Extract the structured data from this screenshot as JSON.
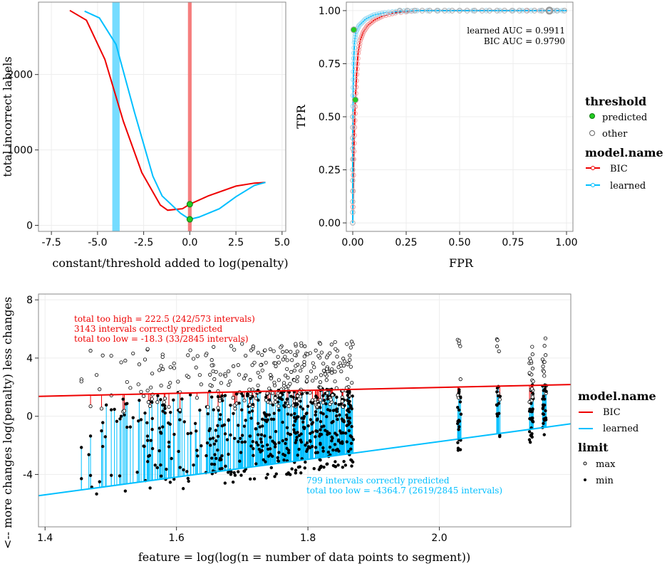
{
  "colors": {
    "BIC": "#ee0000",
    "learned": "#00bfff",
    "predicted": "#22cc22",
    "other": "#888888"
  },
  "chart_data": [
    {
      "type": "line",
      "xlabel": "constant/threshold added to log(penalty)",
      "ylabel": "total incorrect labels",
      "xlim": [
        -8.2,
        5.2
      ],
      "ylim": [
        -80,
        2960
      ],
      "xticks": [
        "-7.5",
        "-5.0",
        "-2.5",
        "0.0",
        "2.5",
        "5.0"
      ],
      "yticks": [
        "0",
        "1000",
        "2000"
      ],
      "grid": true,
      "vbands": [
        {
          "series": "learned",
          "x": -4.0,
          "width": 0.4
        },
        {
          "series": "BIC",
          "x": 0.0,
          "width": 0.2
        }
      ],
      "series": [
        {
          "name": "BIC",
          "x": [
            -6.5,
            -5.6,
            -4.6,
            -3.6,
            -2.6,
            -1.6,
            -1.2,
            -0.4,
            0.0,
            1.0,
            2.5,
            3.5,
            4.1
          ],
          "y": [
            2850,
            2720,
            2200,
            1380,
            700,
            270,
            200,
            220,
            280,
            390,
            520,
            560,
            570
          ]
        },
        {
          "name": "learned",
          "x": [
            -5.7,
            -4.9,
            -4.0,
            -3.0,
            -2.0,
            -1.5,
            -0.5,
            0.0,
            0.5,
            1.6,
            2.5,
            3.5,
            4.1
          ],
          "y": [
            2840,
            2750,
            2400,
            1500,
            650,
            390,
            160,
            80,
            110,
            220,
            380,
            530,
            570
          ]
        }
      ],
      "points": [
        {
          "series": "BIC",
          "x": 0.0,
          "y": 280,
          "threshold": "predicted"
        },
        {
          "series": "learned",
          "x": 0.0,
          "y": 80,
          "threshold": "predicted"
        }
      ]
    },
    {
      "type": "line",
      "xlabel": "FPR",
      "ylabel": "TPR",
      "xlim": [
        -0.03,
        1.03
      ],
      "ylim": [
        -0.04,
        1.04
      ],
      "xticks": [
        "0.00",
        "0.25",
        "0.50",
        "0.75",
        "1.00"
      ],
      "yticks": [
        "0.00",
        "0.25",
        "0.50",
        "0.75",
        "1.00"
      ],
      "grid": true,
      "annotations": [
        {
          "series": "learned",
          "text": "learned AUC = 0.9911"
        },
        {
          "series": "BIC",
          "text": "BIC AUC = 0.9790"
        }
      ],
      "series": [
        {
          "name": "BIC",
          "x": [
            0.0,
            0.004,
            0.008,
            0.012,
            0.018,
            0.025,
            0.035,
            0.05,
            0.07,
            0.1,
            0.14,
            0.2,
            0.3,
            0.5,
            0.75,
            1.0
          ],
          "y": [
            0.0,
            0.3,
            0.45,
            0.58,
            0.7,
            0.8,
            0.86,
            0.9,
            0.93,
            0.955,
            0.975,
            0.99,
            1.0,
            1.0,
            1.0,
            1.0
          ]
        },
        {
          "name": "learned",
          "x": [
            0.0,
            0.0,
            0.0,
            0.002,
            0.004,
            0.008,
            0.015,
            0.03,
            0.06,
            0.1,
            0.15,
            0.22,
            0.3,
            0.5,
            0.75,
            0.92,
            1.0
          ],
          "y": [
            0.0,
            0.2,
            0.4,
            0.6,
            0.75,
            0.85,
            0.9,
            0.93,
            0.96,
            0.98,
            0.99,
            0.997,
            1.0,
            1.0,
            1.0,
            1.0,
            1.0
          ]
        }
      ],
      "points": [
        {
          "series": "BIC",
          "x": 0.012,
          "y": 0.58,
          "threshold": "predicted"
        },
        {
          "series": "learned",
          "x": 0.005,
          "y": 0.91,
          "threshold": "predicted"
        }
      ]
    },
    {
      "type": "scatter",
      "xlabel": "feature = log(log(n = number of data points to segment))",
      "ylabel": "<-- more changes log(penalty) less changes",
      "xlim": [
        1.39,
        2.2
      ],
      "ylim": [
        -7.6,
        8.4
      ],
      "xticks": [
        "1.4",
        "1.6",
        "1.8",
        "2.0"
      ],
      "yticks": [
        "-4",
        "0",
        "4",
        "8"
      ],
      "grid": true,
      "series": [
        {
          "name": "BIC",
          "slope": 1.0,
          "intercept": -0.02,
          "x": [
            1.39,
            2.2
          ],
          "y": [
            1.37,
            2.18
          ]
        },
        {
          "name": "learned",
          "slope": 6.1,
          "intercept": -13.94,
          "x": [
            1.39,
            2.2
          ],
          "y": [
            -5.46,
            -0.52
          ]
        }
      ],
      "annotations": [
        {
          "series": "BIC",
          "lines": [
            "total too high = 222.5 (242/573 intervals)",
            "3143 intervals correctly predicted",
            "total too low = -18.3 (33/2845 intervals)"
          ]
        },
        {
          "series": "learned",
          "lines": [
            "799 intervals correctly predicted",
            "total too low = -4364.7 (2619/2845 intervals)"
          ]
        }
      ],
      "limit_values": {
        "max": "open circles, mostly 0 to 5.3",
        "min": "filled dots, mostly -7 to 1.5"
      },
      "x_clusters": [
        {
          "x_from": 1.43,
          "x_to": 1.87
        },
        {
          "x": 2.03
        },
        {
          "x": 2.09
        },
        {
          "x": 2.14
        },
        {
          "x": 2.16
        }
      ]
    }
  ],
  "legend_top": {
    "threshold_title": "threshold",
    "threshold_items": [
      "predicted",
      "other"
    ],
    "model_title": "model.name",
    "model_items": [
      "BIC",
      "learned"
    ]
  },
  "legend_bottom": {
    "model_title": "model.name",
    "model_items": [
      "BIC",
      "learned"
    ],
    "limit_title": "limit",
    "limit_items": [
      "max",
      "min"
    ]
  }
}
